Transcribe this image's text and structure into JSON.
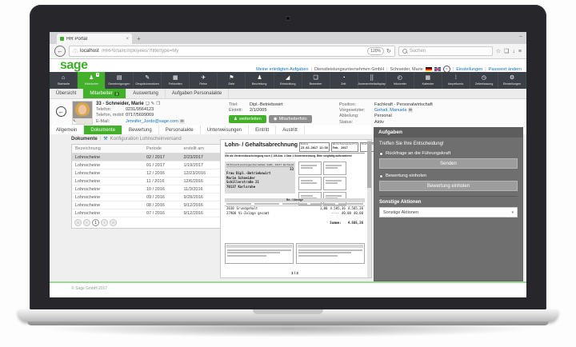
{
  "browser": {
    "tab_title": "HR Portal",
    "new_tab": "+",
    "close_tab": "×",
    "minimize": "–",
    "back": "←",
    "info": "ⓘ",
    "url_host": "localhost",
    "url_path": "/HRPortal/Employees/?filtertype=My",
    "zoom_level": "120%",
    "reload": "↻",
    "search_placeholder": "Suchen"
  },
  "header": {
    "logo": "sage",
    "links_left": [
      {
        "label": "Meine erledigten Aufgaben",
        "link": true
      },
      {
        "label": "Dienstleistungsunternehmen GmbH",
        "link": false
      },
      {
        "label": "Schneider, Marie",
        "link": false
      }
    ],
    "links_right": [
      {
        "label": "Einstellungen",
        "link": true
      },
      {
        "label": "Passwort ändern",
        "link": true
      }
    ],
    "help": "?"
  },
  "nav": {
    "items": [
      {
        "label": "Startseite",
        "icon": "home-icon",
        "glyph": "⌂"
      },
      {
        "label": "Mitarbeiter",
        "icon": "employee-icon",
        "glyph": "♟",
        "active": true,
        "badge": "3"
      },
      {
        "label": "Genehmigungen",
        "icon": "approvals-icon",
        "glyph": "▤"
      },
      {
        "label": "Gesprächsnotizen",
        "icon": "conversation-notes-icon",
        "glyph": "✎"
      },
      {
        "label": "Fehlzeiten",
        "icon": "absence-calendar-icon",
        "glyph": "▦"
      },
      {
        "label": "Reise",
        "icon": "travel-plane-icon",
        "glyph": "✈"
      },
      {
        "label": "Ziele",
        "icon": "goals-flag-icon",
        "glyph": "⚑"
      },
      {
        "label": "Beurteilung",
        "icon": "review-people-icon",
        "glyph": "♟"
      },
      {
        "label": "Entwicklung",
        "icon": "development-chart-icon",
        "glyph": "◢"
      },
      {
        "label": "Bewerber",
        "icon": "applicants-icon",
        "glyph": "❏"
      },
      {
        "label": "Zeit",
        "icon": "time-clock-icon",
        "glyph": "◔"
      },
      {
        "label": "Anwesenheitsdisplay",
        "icon": "attendance-grid-icon",
        "glyph": "⣿"
      },
      {
        "label": "Infocenter",
        "icon": "infocenter-icon",
        "glyph": "◴"
      },
      {
        "label": "Kalender",
        "icon": "calendar-icon",
        "glyph": "▦"
      },
      {
        "label": "Ampelkonto",
        "icon": "traffic-light-icon",
        "glyph": "⁞"
      },
      {
        "label": "Zeiterfassung",
        "icon": "time-tracking-icon",
        "glyph": "◷"
      },
      {
        "label": "Einstellungen",
        "icon": "settings-gear-icon",
        "glyph": "⚙"
      }
    ]
  },
  "subtabs": [
    {
      "label": "Übersicht"
    },
    {
      "label": "Mitarbeiter",
      "badge": "3",
      "active": true
    },
    {
      "label": "Auswertung"
    },
    {
      "label": "Aufgaben Personalakte"
    }
  ],
  "employee": {
    "name": "33 - Schneider, Marie",
    "action_icons": [
      {
        "name": "document-icon",
        "glyph": "❏"
      },
      {
        "name": "edit-icon",
        "glyph": "✎"
      },
      {
        "name": "file-icon",
        "glyph": "❐"
      }
    ],
    "fields_left": [
      {
        "label": "Telefon:",
        "value": "0231/9564123"
      },
      {
        "label": "Telefon, mobil:",
        "value": "0717/5699069"
      },
      {
        "label": "E-Mail:",
        "value": "Jennifer_Jordo@sage.com",
        "link": true,
        "mail": true
      }
    ],
    "fields_mid": [
      {
        "label": "Titel:",
        "value": "Dipl.-Betriebswirt"
      },
      {
        "label": "Eintritt:",
        "value": "2/1/2005"
      }
    ],
    "buttons": [
      {
        "label": "weiterleiten",
        "icon": "forward-person-icon",
        "glyph": "♟",
        "style": "green"
      },
      {
        "label": "Mitarbeiterfoto",
        "icon": "camera-icon",
        "glyph": "◉",
        "style": "gray"
      }
    ],
    "fields_right": [
      {
        "label": "Position:",
        "value": "Fachkraft - Personalwirtschaft"
      },
      {
        "label": "Vorgesetzter:",
        "value": "Gehalt, Manuela",
        "link": true,
        "mail": true
      },
      {
        "label": "Abteilung:",
        "value": "Personal"
      },
      {
        "label": "Status:",
        "value": "Aktiv"
      }
    ]
  },
  "record_tabs": [
    {
      "label": "Allgemein"
    },
    {
      "label": "Dokumente",
      "active": true
    },
    {
      "label": "Bewertung"
    },
    {
      "label": "Personalakte"
    },
    {
      "label": "Unterweisungen"
    },
    {
      "label": "Eintritt"
    },
    {
      "label": "Austritt"
    }
  ],
  "documents": {
    "section_title": "Dokumente",
    "config_link": "Konfiguration Lohnscheinversand",
    "columns": [
      "Bezeichnung",
      "Periode",
      "erstellt am"
    ],
    "rows": [
      {
        "name": "Lohnscheine",
        "period": "02 / 2017",
        "created": "2/23/2017",
        "selected": true
      },
      {
        "name": "Lohnscheine",
        "period": "01 / 2017",
        "created": "1/19/2017"
      },
      {
        "name": "Lohnscheine",
        "period": "12 / 2016",
        "created": "12/23/2016"
      },
      {
        "name": "Lohnscheine",
        "period": "11 / 2016",
        "created": "12/6/2016"
      },
      {
        "name": "Lohnscheine",
        "period": "10 / 2016",
        "created": "11/3/2016"
      },
      {
        "name": "Lohnscheine",
        "period": "09 / 2016",
        "created": "9/28/2016"
      },
      {
        "name": "Lohnscheine",
        "period": "08 / 2016",
        "created": "9/12/2016"
      },
      {
        "name": "Lohnscheine",
        "period": "07 / 2016",
        "created": "9/12/2016"
      }
    ],
    "pagination": [
      {
        "glyph": "«",
        "state": "disabled"
      },
      {
        "glyph": "‹",
        "state": "disabled"
      },
      {
        "glyph": "1",
        "state": "active"
      },
      {
        "glyph": "›",
        "state": "disabled"
      },
      {
        "glyph": "»",
        "state": "disabled"
      }
    ]
  },
  "payslip": {
    "title": "Lohn- / Gehaltsabrechnung",
    "header_fields": [
      {
        "label": "Datum",
        "value": "23.02.2017 11:38"
      },
      {
        "label": "Abrechnungszeitraum",
        "value": "Feb. 2017"
      },
      {
        "label": "Kostenstelle",
        "value": ""
      },
      {
        "label": "Personalnummer",
        "value": "33"
      }
    ],
    "note": "Gilt als Verdienstbescheinigung nach § 108 Abs. 3 Satz 1 Gewerbeordnung. Bitte sorgfältig aufbewahren!",
    "sender_line": "33/Dienstleistungsunternehmen GmbH, 44137 Dortmund",
    "recipient_number": "33",
    "recipient": [
      "Frau Dipl.-Betriebswirt",
      "Marie Schneider",
      "Schillerstraße 21",
      "70137 Karlsruhe"
    ],
    "section_title": "Be- / Abzüge",
    "rows": [
      {
        "code": "2010",
        "label": "Grundgehalt",
        "qty": "1,00",
        "amount": "4.505,36",
        "total": "4.505,36"
      },
      {
        "code": "27900",
        "label": "VL-Zulage gesamt",
        "qty": "----",
        "amount": "40,00",
        "total": "40,00"
      }
    ],
    "sum_label": "Summe:",
    "sum_value": "4.505,36",
    "page_indicator": "1 / 2"
  },
  "tasks": {
    "title": "Aufgaben",
    "prompt": "Treffen Sie Ihre Entscheidung!",
    "options": [
      {
        "label": "Rückfrage an die Führungskraft",
        "button": "Senden",
        "selected": true
      },
      {
        "label": "Bewertung einholen",
        "button": "Bewertung einholen",
        "selected": false
      }
    ],
    "other_actions_label": "Sonstige Aktionen",
    "other_actions_value": "Sonstige Aktionen"
  },
  "footer": {
    "copyright": "© Sage GmbH 2017"
  }
}
